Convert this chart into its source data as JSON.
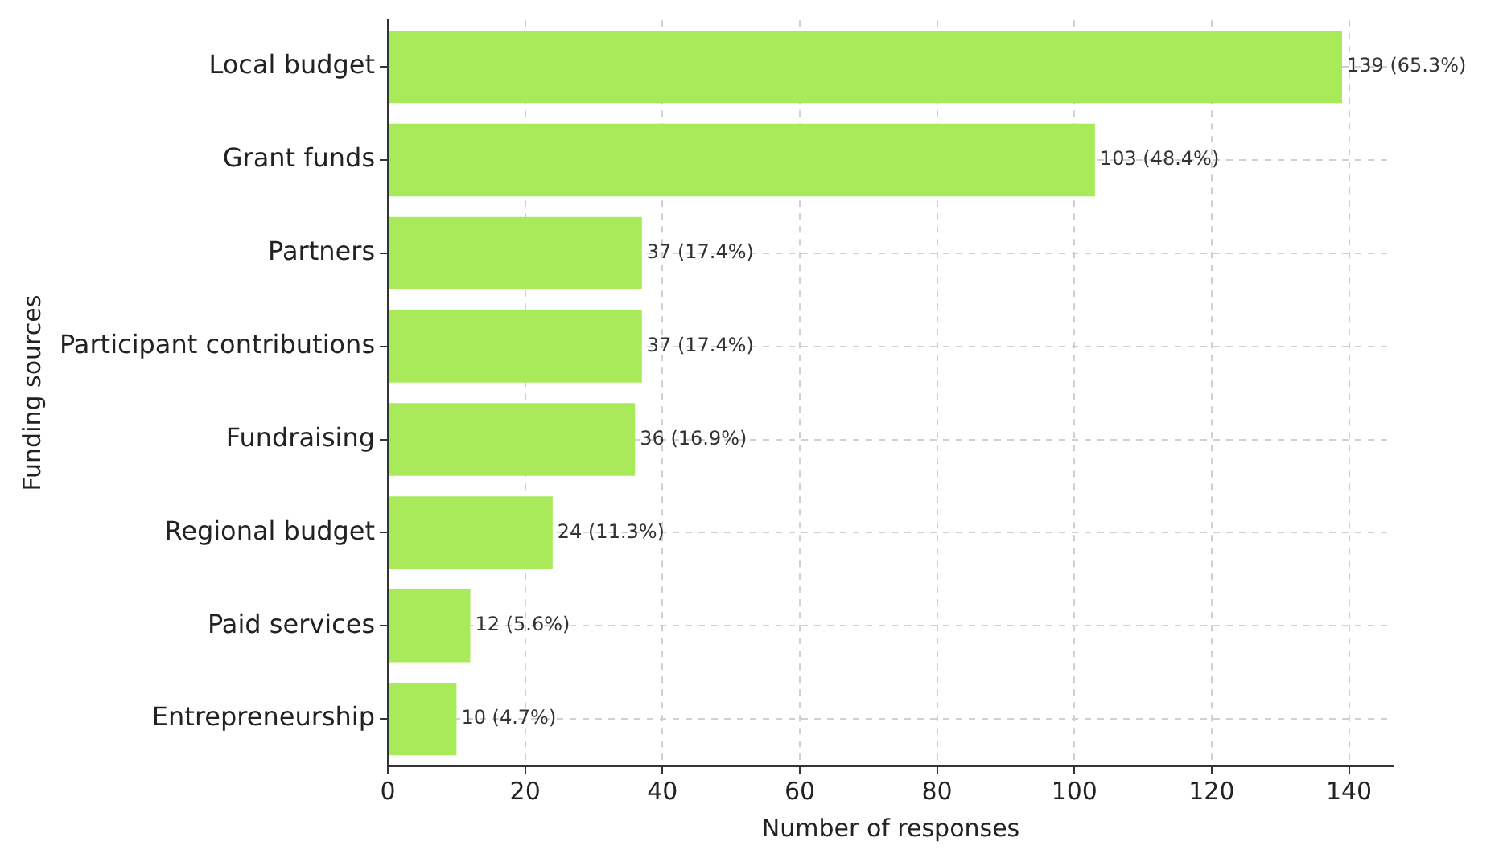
{
  "chart_data": {
    "type": "bar",
    "orientation": "horizontal",
    "xlabel": "Number of responses",
    "ylabel": "Funding sources",
    "categories": [
      "Local budget",
      "Grant funds",
      "Partners",
      "Participant contributions",
      "Fundraising",
      "Regional budget",
      "Paid services",
      "Entrepreneurship"
    ],
    "values": [
      139,
      103,
      37,
      37,
      36,
      24,
      12,
      10
    ],
    "value_labels": [
      "139 (65.3%)",
      "103 (48.4%)",
      "37 (17.4%)",
      "37 (17.4%)",
      "36 (16.9%)",
      "24 (11.3%)",
      "12 (5.6%)",
      "10 (4.7%)"
    ],
    "color": "#a9ea5b",
    "xlim": [
      0,
      146.5
    ],
    "xticks": [
      0,
      20,
      40,
      60,
      80,
      100,
      120,
      140
    ],
    "grid": true,
    "legend": false
  }
}
